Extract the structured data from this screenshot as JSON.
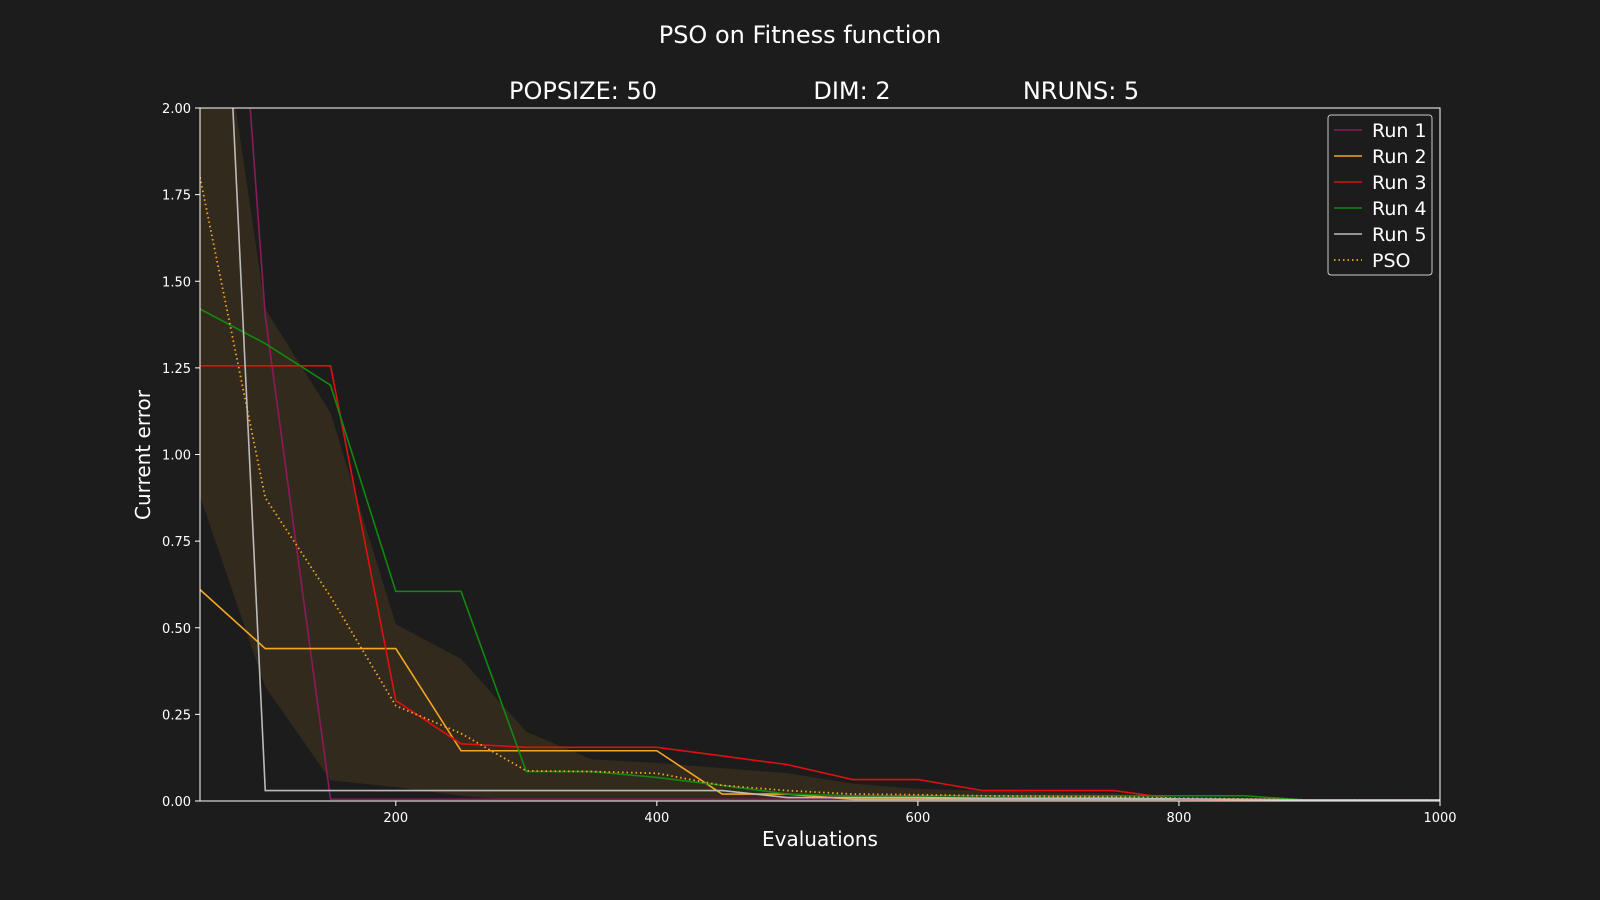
{
  "chart_data": {
    "type": "line",
    "title": "PSO on Fitness function",
    "subtitles": [
      "POPSIZE: 50",
      "DIM: 2",
      "NRUNS: 5"
    ],
    "xlabel": "Evaluations",
    "ylabel": "Current error",
    "xlim": [
      50,
      1000
    ],
    "ylim": [
      0,
      2.0
    ],
    "xticks": [
      200,
      400,
      600,
      800,
      1000
    ],
    "xtick_labels": [
      "200",
      "400",
      "600",
      "800",
      "1000"
    ],
    "yticks": [
      0,
      0.25,
      0.5,
      0.75,
      1.0,
      1.25,
      1.5,
      1.75,
      2.0
    ],
    "ytick_labels": [
      "0.00",
      "0.25",
      "0.50",
      "0.75",
      "1.00",
      "1.25",
      "1.50",
      "1.75",
      "2.00"
    ],
    "grid": false,
    "legend_position": "top-right",
    "x": [
      50,
      100,
      150,
      200,
      250,
      300,
      350,
      400,
      450,
      500,
      550,
      600,
      650,
      700,
      750,
      800,
      850,
      900,
      950,
      1000
    ],
    "series": [
      {
        "name": "Run 1",
        "color": "#8b1a5a",
        "style": "solid",
        "values": [
          4.0,
          1.4,
          0.005,
          0.005,
          0.005,
          0.005,
          0.005,
          0.005,
          0.005,
          0.005,
          0.005,
          0.005,
          0.005,
          0.005,
          0.005,
          0.005,
          0.003,
          0.002,
          0.002,
          0.002
        ]
      },
      {
        "name": "Run 2",
        "color": "#f5a623",
        "style": "solid",
        "values": [
          0.61,
          0.44,
          0.44,
          0.44,
          0.145,
          0.145,
          0.145,
          0.145,
          0.02,
          0.02,
          0.005,
          0.005,
          0.005,
          0.005,
          0.005,
          0.005,
          0.004,
          0.003,
          0.003,
          0.003
        ]
      },
      {
        "name": "Run 3",
        "color": "#e01010",
        "style": "solid",
        "values": [
          1.256,
          1.256,
          1.256,
          0.29,
          0.165,
          0.155,
          0.155,
          0.155,
          0.13,
          0.105,
          0.062,
          0.062,
          0.03,
          0.03,
          0.03,
          0.005,
          0.005,
          0.003,
          0.003,
          0.003
        ]
      },
      {
        "name": "Run 4",
        "color": "#0f8a0f",
        "style": "solid",
        "values": [
          1.42,
          1.32,
          1.2,
          0.605,
          0.605,
          0.085,
          0.085,
          0.068,
          0.045,
          0.02,
          0.015,
          0.015,
          0.015,
          0.015,
          0.015,
          0.015,
          0.015,
          0.002,
          0.002,
          0.002
        ]
      },
      {
        "name": "Run 5",
        "color": "#bbbbbb",
        "style": "solid",
        "values": [
          4.0,
          0.03,
          0.03,
          0.03,
          0.03,
          0.03,
          0.03,
          0.03,
          0.03,
          0.01,
          0.01,
          0.01,
          0.008,
          0.008,
          0.008,
          0.006,
          0.005,
          0.003,
          0.003,
          0.003
        ]
      },
      {
        "name": "PSO",
        "color": "#f5a623",
        "style": "dotted",
        "values": [
          1.8,
          0.875,
          0.59,
          0.275,
          0.195,
          0.087,
          0.085,
          0.08,
          0.045,
          0.03,
          0.02,
          0.018,
          0.015,
          0.013,
          0.012,
          0.008,
          0.006,
          0.003,
          0.003,
          0.003
        ]
      }
    ],
    "band": {
      "color": "#f5a623",
      "upper": [
        2.7,
        1.42,
        1.12,
        0.51,
        0.41,
        0.2,
        0.12,
        0.11,
        0.095,
        0.08,
        0.05,
        0.035,
        0.03,
        0.025,
        0.022,
        0.012,
        0.01,
        0.005,
        0.005,
        0.005
      ],
      "lower": [
        0.88,
        0.33,
        0.06,
        0.04,
        0.015,
        0.0,
        0.0,
        0.0,
        0.0,
        0.0,
        0.0,
        0.0,
        0.0,
        0.0,
        0.0,
        0.0,
        0.0,
        0.0,
        0.0,
        0.0
      ]
    }
  }
}
